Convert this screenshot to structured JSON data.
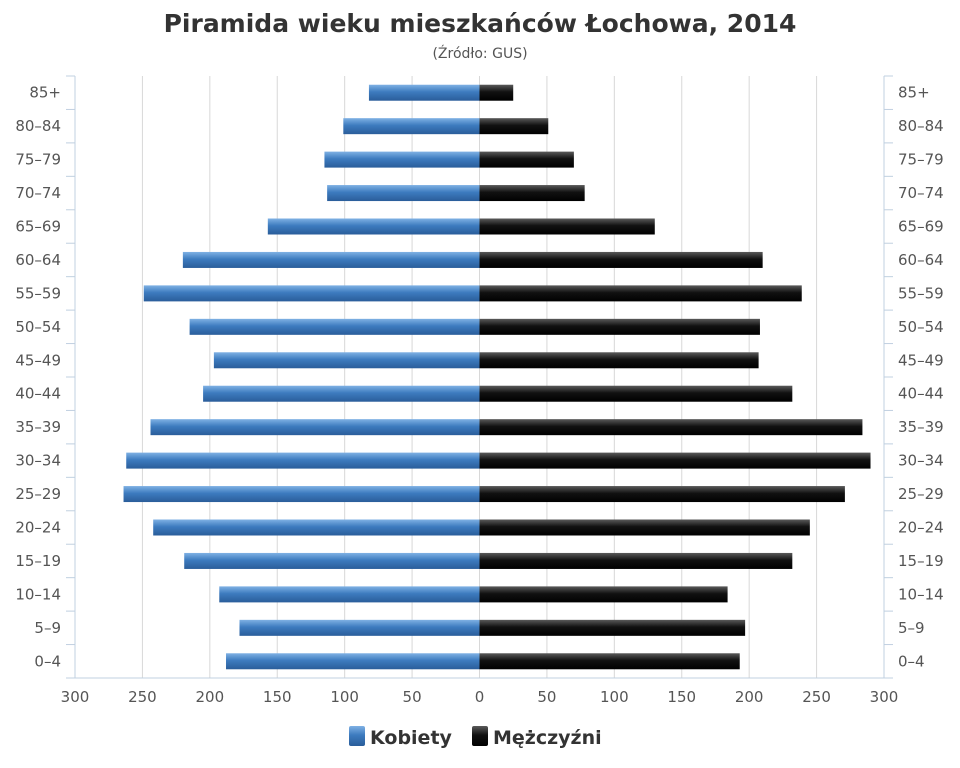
{
  "chart_data": {
    "type": "bar",
    "orientation": "horizontal-pyramid",
    "title": "Piramida wieku mieszkańców Łochowa, 2014",
    "subtitle": "(Źródło: GUS)",
    "categories": [
      "0–4",
      "5–9",
      "10–14",
      "15–19",
      "20–24",
      "25–29",
      "30–34",
      "35–39",
      "40–44",
      "45–49",
      "50–54",
      "55–59",
      "60–64",
      "65–69",
      "70–74",
      "75–79",
      "80–84",
      "85+"
    ],
    "series": [
      {
        "name": "Kobiety",
        "side": "left",
        "color": "#3d7bbf",
        "values": [
          188,
          178,
          193,
          219,
          242,
          264,
          262,
          244,
          205,
          197,
          215,
          249,
          220,
          157,
          113,
          115,
          101,
          82
        ]
      },
      {
        "name": "Mężczyźni",
        "side": "right",
        "color": "#111111",
        "values": [
          193,
          197,
          184,
          232,
          245,
          271,
          290,
          284,
          232,
          207,
          208,
          239,
          210,
          130,
          78,
          70,
          51,
          25
        ]
      }
    ],
    "xlim": [
      -300,
      300
    ],
    "xticks": [
      -300,
      -250,
      -200,
      -150,
      -100,
      -50,
      0,
      50,
      100,
      150,
      200,
      250,
      300
    ],
    "xtick_labels": [
      "300",
      "250",
      "200",
      "150",
      "100",
      "50",
      "0",
      "50",
      "100",
      "150",
      "200",
      "250",
      "300"
    ],
    "grid": true,
    "legend_position": "bottom-center"
  }
}
